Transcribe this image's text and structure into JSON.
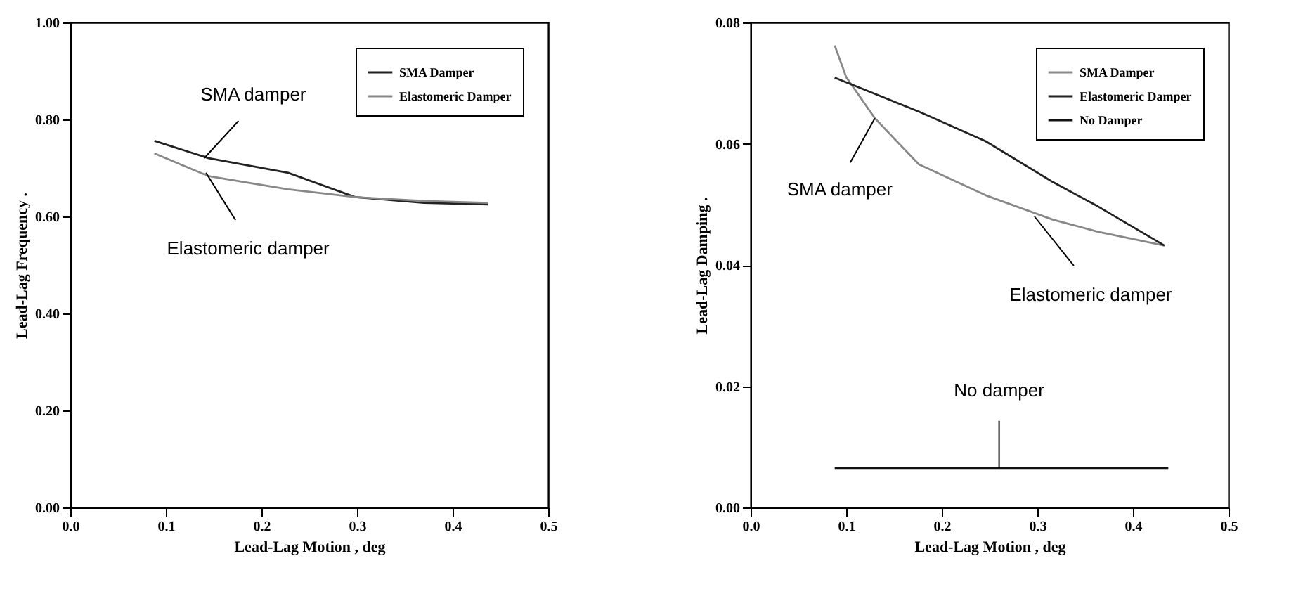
{
  "chart_data": [
    {
      "type": "line",
      "xlabel": "Lead-Lag Motion , deg",
      "ylabel": "Lead-Lag Frequency .",
      "xlim": [
        0,
        0.5
      ],
      "ylim": [
        0,
        1
      ],
      "xticks": [
        {
          "value": 0,
          "label": "0.0"
        },
        {
          "value": 0.1,
          "label": "0.1"
        },
        {
          "value": 0.2,
          "label": "0.2"
        },
        {
          "value": 0.3,
          "label": "0.3"
        },
        {
          "value": 0.4,
          "label": "0.4"
        },
        {
          "value": 0.5,
          "label": "0.5"
        }
      ],
      "yticks": [
        {
          "value": 0,
          "label": "0.00"
        },
        {
          "value": 0.2,
          "label": "0.20"
        },
        {
          "value": 0.4,
          "label": "0.40"
        },
        {
          "value": 0.6,
          "label": "0.60"
        },
        {
          "value": 0.8,
          "label": "0.80"
        },
        {
          "value": 1,
          "label": "1.00"
        }
      ],
      "grid": false,
      "legend": "top right",
      "line_style": "solid",
      "marker": "none",
      "series": [
        {
          "name": "SMA Damper",
          "color": "#222222",
          "x": [
            0.088,
            0.145,
            0.228,
            0.298,
            0.37,
            0.437
          ],
          "values": [
            0.756,
            0.72,
            0.69,
            0.64,
            0.628,
            0.625
          ]
        },
        {
          "name": "Elastomeric Damper",
          "color": "#888888",
          "x": [
            0.088,
            0.145,
            0.228,
            0.298,
            0.37,
            0.437
          ],
          "values": [
            0.73,
            0.683,
            0.656,
            0.64,
            0.632,
            0.628
          ]
        }
      ],
      "annotations": [
        {
          "text": "SMA damper",
          "x": 0.14,
          "y": 0.72
        },
        {
          "text": "Elastomeric damper",
          "x": 0.142,
          "y": 0.69
        }
      ]
    },
    {
      "type": "line",
      "xlabel": "Lead-Lag Motion , deg",
      "ylabel": "Lead-Lag Damping .",
      "xlim": [
        0,
        0.5
      ],
      "ylim": [
        0,
        0.08
      ],
      "xticks": [
        {
          "value": 0,
          "label": "0.0"
        },
        {
          "value": 0.1,
          "label": "0.1"
        },
        {
          "value": 0.2,
          "label": "0.2"
        },
        {
          "value": 0.3,
          "label": "0.3"
        },
        {
          "value": 0.4,
          "label": "0.4"
        },
        {
          "value": 0.5,
          "label": "0.5"
        }
      ],
      "yticks": [
        {
          "value": 0,
          "label": "0.00"
        },
        {
          "value": 0.02,
          "label": "0.02"
        },
        {
          "value": 0.04,
          "label": "0.04"
        },
        {
          "value": 0.06,
          "label": "0.06"
        },
        {
          "value": 0.08,
          "label": "0.08"
        }
      ],
      "grid": false,
      "legend": "top right",
      "line_style": "solid",
      "marker": "none",
      "series": [
        {
          "name": "SMA Damper",
          "color": "#888888",
          "x": [
            0.088,
            0.1,
            0.13,
            0.176,
            0.246,
            0.316,
            0.363,
            0.433
          ],
          "values": [
            0.0762,
            0.071,
            0.0642,
            0.0566,
            0.0515,
            0.0475,
            0.0455,
            0.0432
          ]
        },
        {
          "name": "Elastomeric Damper",
          "color": "#222222",
          "x": [
            0.088,
            0.176,
            0.246,
            0.316,
            0.363,
            0.433
          ],
          "values": [
            0.0709,
            0.0653,
            0.0604,
            0.0537,
            0.0497,
            0.0432
          ]
        },
        {
          "name": "No Damper",
          "color": "#111111",
          "x": [
            0.088,
            0.437
          ],
          "values": [
            0.0065,
            0.0065
          ]
        }
      ],
      "annotations": [
        {
          "text": "SMA damper",
          "x": 0.13,
          "y": 0.0642
        },
        {
          "text": "Elastomeric damper",
          "x": 0.297,
          "y": 0.048
        },
        {
          "text": "No damper",
          "x": 0.26,
          "y": 0.0065
        }
      ]
    }
  ]
}
